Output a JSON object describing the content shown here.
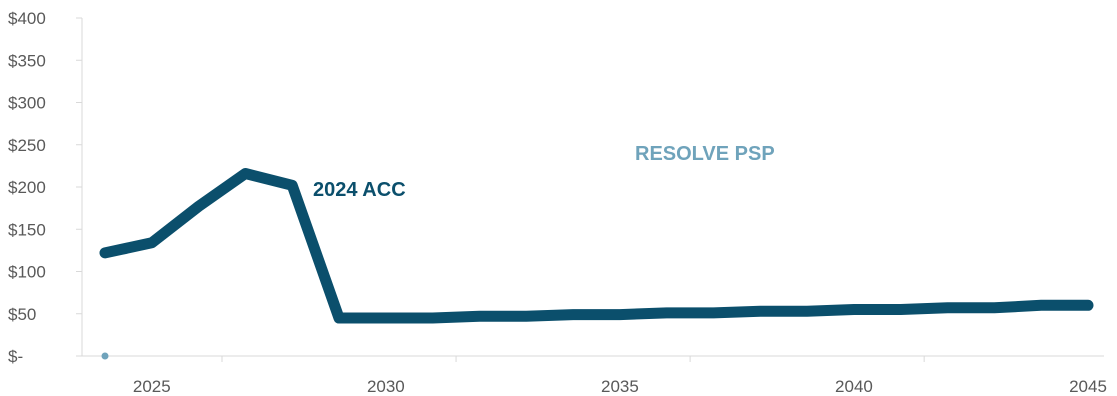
{
  "chart_data": {
    "type": "line",
    "ylim": [
      0,
      400
    ],
    "xlim": [
      2024,
      2045
    ],
    "y_ticks": [
      0,
      50,
      100,
      150,
      200,
      250,
      300,
      350,
      400
    ],
    "y_tick_labels": [
      "$-",
      "$50",
      "$100",
      "$150",
      "$200",
      "$250",
      "$300",
      "$350",
      "$400"
    ],
    "x_ticks": [
      2025,
      2030,
      2035,
      2040,
      2045
    ],
    "x_tick_labels": [
      "2025",
      "2030",
      "2035",
      "2040",
      "2045"
    ],
    "grid": false,
    "series": [
      {
        "name": "2024 ACC",
        "color": "#0b4f6c",
        "x": [
          2024,
          2025,
          2026,
          2027,
          2028,
          2029,
          2030,
          2031,
          2032,
          2033,
          2034,
          2035,
          2036,
          2037,
          2038,
          2039,
          2040,
          2041,
          2042,
          2043,
          2044,
          2045
        ],
        "values": [
          122,
          134,
          177,
          216,
          202,
          45,
          45,
          45,
          47,
          47,
          49,
          49,
          51,
          51,
          53,
          53,
          55,
          55,
          57,
          57,
          60,
          60
        ]
      },
      {
        "name": "RESOLVE PSP",
        "color": "#6fa3bb",
        "x": [
          2024
        ],
        "values": [
          0
        ]
      }
    ]
  }
}
